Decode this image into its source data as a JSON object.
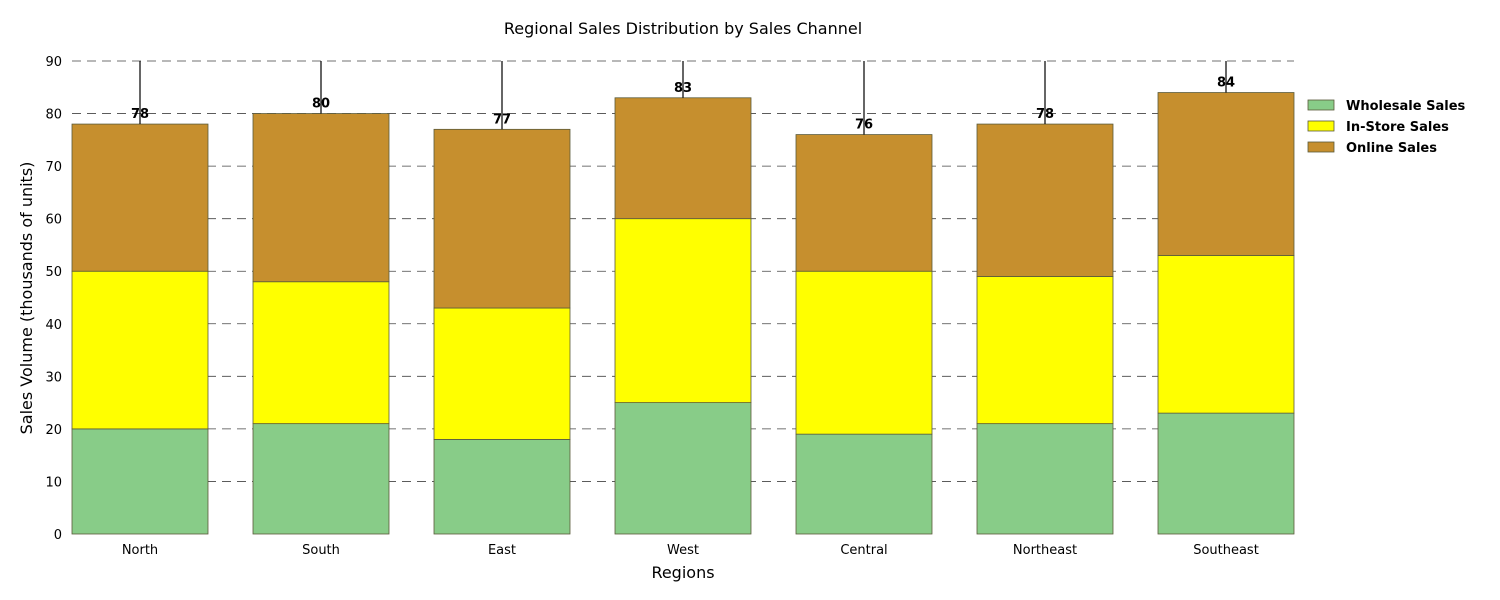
{
  "chart_data": {
    "type": "bar",
    "stacked": true,
    "title": "Regional Sales Distribution by Sales Channel",
    "xlabel": "Regions",
    "ylabel": "Sales Volume (thousands of units)",
    "categories": [
      "North",
      "South",
      "East",
      "West",
      "Central",
      "Northeast",
      "Southeast"
    ],
    "series": [
      {
        "name": "Wholesale Sales",
        "color": "#88cc88",
        "values": [
          20,
          21,
          18,
          25,
          19,
          21,
          23
        ]
      },
      {
        "name": "In-Store Sales",
        "color": "#ffff00",
        "values": [
          30,
          27,
          25,
          35,
          31,
          28,
          30
        ]
      },
      {
        "name": "Online Sales",
        "color": "#c68f2e",
        "values": [
          28,
          32,
          34,
          23,
          26,
          29,
          31
        ]
      }
    ],
    "totals": [
      "78",
      "80",
      "77",
      "83",
      "76",
      "78",
      "84"
    ],
    "ylim": [
      0,
      90
    ],
    "yticks": [
      "0",
      "10",
      "20",
      "30",
      "40",
      "50",
      "60",
      "70",
      "80",
      "90"
    ],
    "grid": "horizontal dashed",
    "legend_position": "right"
  }
}
